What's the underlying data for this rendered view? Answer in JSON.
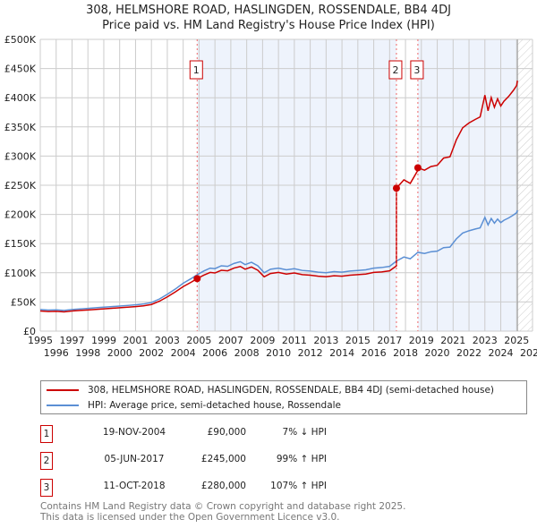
{
  "title": "308, HELMSHORE ROAD, HASLINGDEN, ROSSENDALE, BB4 4DJ",
  "subtitle": "Price paid vs. HM Land Registry's House Price Index (HPI)",
  "chart_data": {
    "type": "line",
    "xlim": [
      1995,
      2026
    ],
    "ylim": [
      0,
      500000
    ],
    "y_ticks": [
      0,
      50000,
      100000,
      150000,
      200000,
      250000,
      300000,
      350000,
      400000,
      450000,
      500000
    ],
    "y_tick_labels": [
      "£0",
      "£50K",
      "£100K",
      "£150K",
      "£200K",
      "£250K",
      "£300K",
      "£350K",
      "£400K",
      "£450K",
      "£500K"
    ],
    "x_ticks": [
      "1995",
      "1996",
      "1997",
      "1998",
      "1999",
      "2000",
      "2001",
      "2002",
      "2003",
      "2004",
      "2005",
      "2006",
      "2007",
      "2008",
      "2009",
      "2010",
      "2011",
      "2012",
      "2013",
      "2014",
      "2015",
      "2016",
      "2017",
      "2018",
      "2019",
      "2020",
      "2021",
      "2022",
      "2023",
      "2024",
      "2025",
      "2026"
    ],
    "grid": true,
    "data_end": 2025.05,
    "hpi_series": {
      "name": "HPI: Average price, semi-detached house, Rossendale",
      "color": "#5b8fd4",
      "x": [
        1995,
        1995.5,
        1996,
        1996.5,
        1997,
        1997.5,
        1998,
        1998.5,
        1999,
        1999.5,
        2000,
        2000.5,
        2001,
        2001.5,
        2002,
        2002.5,
        2003,
        2003.5,
        2004,
        2004.5,
        2004.9,
        2005.3,
        2005.7,
        2006,
        2006.4,
        2006.8,
        2007.2,
        2007.6,
        2007.9,
        2008.3,
        2008.7,
        2009.1,
        2009.5,
        2010,
        2010.5,
        2011,
        2011.5,
        2012,
        2012.5,
        2013,
        2013.5,
        2014,
        2014.5,
        2015,
        2015.5,
        2016,
        2016.5,
        2017,
        2017.43,
        2017.9,
        2018.3,
        2018.78,
        2019.2,
        2019.6,
        2020,
        2020.4,
        2020.8,
        2021.2,
        2021.6,
        2022,
        2022.4,
        2022.7,
        2023,
        2023.2,
        2023.4,
        2023.6,
        2023.8,
        2024,
        2024.2,
        2024.5,
        2024.8,
        2025,
        2025.05
      ],
      "y": [
        37000,
        36000,
        36500,
        35500,
        37000,
        38000,
        39000,
        40000,
        41000,
        42000,
        43000,
        44000,
        45000,
        46500,
        49000,
        55000,
        63000,
        72000,
        82000,
        90000,
        97000,
        103000,
        108000,
        107000,
        112000,
        111000,
        116000,
        119000,
        114000,
        118000,
        112000,
        100000,
        106000,
        108000,
        105000,
        107000,
        104000,
        103000,
        101000,
        100000,
        102000,
        101000,
        103000,
        104000,
        105000,
        108000,
        109000,
        111000,
        120000,
        127000,
        124000,
        135000,
        133000,
        136000,
        137000,
        143000,
        144000,
        158000,
        168000,
        172000,
        175000,
        177000,
        195000,
        182000,
        193000,
        185000,
        192000,
        186000,
        190000,
        194000,
        199000,
        203000,
        207000
      ]
    },
    "price_series": {
      "name": "308, HELMSHORE ROAD, HASLINGDEN, ROSSENDALE, BB4 4DJ (semi-detached house)",
      "color": "#cc0000"
    },
    "sales": [
      {
        "label": "1",
        "x": 2004.88,
        "date": "19-NOV-2004",
        "price": 90000,
        "price_text": "£90,000",
        "hpi_text": "7% ↓ HPI"
      },
      {
        "label": "2",
        "x": 2017.43,
        "date": "05-JUN-2017",
        "price": 245000,
        "price_text": "£245,000",
        "hpi_text": "99% ↑ HPI"
      },
      {
        "label": "3",
        "x": 2018.78,
        "date": "11-OCT-2018",
        "price": 280000,
        "price_text": "£280,000",
        "hpi_text": "107% ↑ HPI"
      }
    ]
  },
  "footer": {
    "line1": "Contains HM Land Registry data © Crown copyright and database right 2025.",
    "line2": "This data is licensed under the Open Government Licence v3.0."
  }
}
